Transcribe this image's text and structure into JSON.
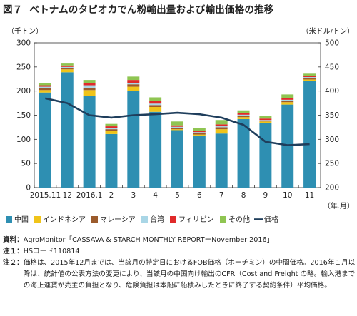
{
  "figure": {
    "label": "図７",
    "title": "ベトナムのタピオカでん粉輸出量および輸出価格の推移"
  },
  "chart_data": {
    "type": "bar",
    "stacked": true,
    "left_axis_label": "（千トン）",
    "right_axis_label": "（米ドル/トン）",
    "x_unit_label": "（年.月）",
    "categories": [
      "2015.11",
      "12",
      "2016.1",
      "2",
      "3",
      "4",
      "5",
      "6",
      "7",
      "8",
      "9",
      "10",
      "11"
    ],
    "ylim": [
      0,
      300
    ],
    "y_ticks": [
      0,
      50,
      100,
      150,
      200,
      250,
      300
    ],
    "y2lim": [
      200,
      500
    ],
    "y2_ticks": [
      200,
      250,
      300,
      350,
      400,
      450,
      500
    ],
    "series": [
      {
        "name": "中国",
        "color": "#2e8fb2",
        "values": [
          197,
          239,
          190,
          111,
          201,
          157,
          119,
          108,
          112,
          142,
          133,
          172,
          221
        ]
      },
      {
        "name": "インドネシア",
        "color": "#f0c419",
        "values": [
          5,
          6,
          12,
          7,
          8,
          10,
          2,
          2,
          9,
          4,
          4,
          5,
          3
        ]
      },
      {
        "name": "マレーシア",
        "color": "#9b5b2c",
        "values": [
          4,
          3,
          5,
          3,
          5,
          4,
          3,
          3,
          4,
          3,
          2,
          3,
          3
        ]
      },
      {
        "name": "台湾",
        "color": "#a9d6e6",
        "values": [
          3,
          2,
          5,
          2,
          3,
          3,
          2,
          2,
          2,
          2,
          1,
          2,
          2
        ]
      },
      {
        "name": "フィリピン",
        "color": "#e02a2a",
        "values": [
          3,
          3,
          5,
          4,
          6,
          6,
          3,
          3,
          4,
          4,
          3,
          4,
          2
        ]
      },
      {
        "name": "その他",
        "color": "#8fc552",
        "values": [
          5,
          4,
          6,
          5,
          7,
          7,
          8,
          5,
          9,
          5,
          5,
          7,
          5
        ]
      }
    ],
    "line_series": {
      "name": "価格",
      "color": "#1f3e5c",
      "axis": "right",
      "values": [
        385,
        375,
        350,
        345,
        350,
        352,
        355,
        352,
        345,
        330,
        295,
        288,
        290
      ]
    },
    "grid": false,
    "legend_position": "bottom"
  },
  "notes": [
    {
      "label": "資料：",
      "text": "AgroMonitor「CASSAVA & STARCH MONTHLY REPORTーNovember 2016」"
    },
    {
      "label": "注１：",
      "text": "HSコード110814"
    },
    {
      "label": "注２：",
      "text": "価格は、2015年12月までは、当該月の特定日におけるFOB価格（ホーチミン）の中間価格。2016年１月以降は、統計値の公表方法の変更により、当該月の中国向け輸出のCFR（Cost and Freight の略。輸入港までの海上運賃が売主の負担となり、危険負担は本船に船積みしたときに終了する契約条件）平均価格。"
    }
  ]
}
